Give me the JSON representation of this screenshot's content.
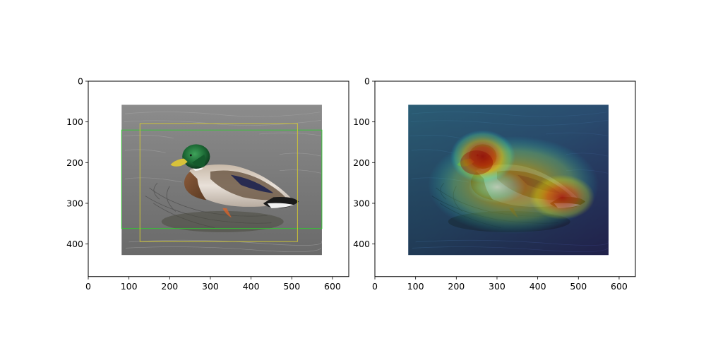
{
  "figure": {
    "panels": [
      {
        "id": "left",
        "x_ticks": [
          "0",
          "100",
          "200",
          "300",
          "400",
          "500",
          "600"
        ],
        "y_ticks": [
          "0",
          "100",
          "200",
          "300",
          "400"
        ],
        "x_tick_values": [
          0,
          100,
          200,
          300,
          400,
          500,
          600
        ],
        "y_tick_values": [
          0,
          100,
          200,
          300,
          400
        ],
        "xlim": [
          0,
          640
        ],
        "ylim": [
          480,
          0
        ],
        "image_extent": {
          "x": [
            82,
            574
          ],
          "y": [
            58,
            427
          ]
        },
        "content": "photo of a mallard duck swimming on gray water",
        "boxes": [
          {
            "color": "#32c832",
            "x": [
              82,
              574
            ],
            "y": [
              120,
              362
            ]
          },
          {
            "color": "#d2c832",
            "x": [
              127,
              514
            ],
            "y": [
              104,
              394
            ]
          }
        ]
      },
      {
        "id": "right",
        "x_ticks": [
          "0",
          "100",
          "200",
          "300",
          "400",
          "500",
          "600"
        ],
        "y_ticks": [
          "0",
          "100",
          "200",
          "300",
          "400"
        ],
        "x_tick_values": [
          0,
          100,
          200,
          300,
          400,
          500,
          600
        ],
        "y_tick_values": [
          0,
          100,
          200,
          300,
          400
        ],
        "xlim": [
          0,
          640
        ],
        "ylim": [
          480,
          0
        ],
        "image_extent": {
          "x": [
            82,
            574
          ],
          "y": [
            58,
            427
          ]
        },
        "content": "same duck photo with a jet-colormap attention heatmap overlay",
        "boxes": []
      }
    ]
  }
}
